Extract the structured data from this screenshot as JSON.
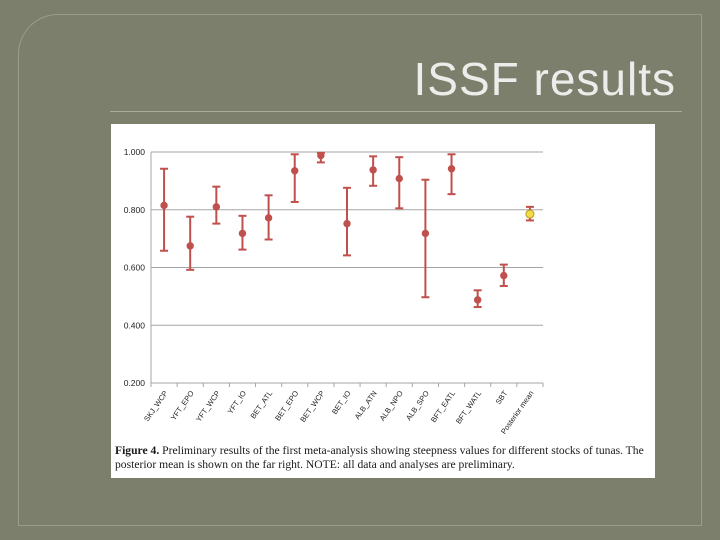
{
  "slide": {
    "title": "ISSF results"
  },
  "caption": {
    "label": "Figure 4.",
    "text": "Preliminary results of the first meta-analysis showing steepness values for different stocks of tunas. The posterior mean is shown on the far right. NOTE: all data and analyses are preliminary."
  },
  "chart_data": {
    "type": "scatter",
    "title": "",
    "xlabel": "",
    "ylabel": "",
    "ylim": [
      0.2,
      1.0
    ],
    "yticks": [
      "1.000",
      "0.800",
      "0.600",
      "0.400",
      "0.200"
    ],
    "ytick_values": [
      1.0,
      0.8,
      0.6,
      0.4,
      0.2
    ],
    "grid": "horizontal",
    "legend": "none",
    "colors": {
      "point": "#c0504d",
      "error_bar": "#c0504d",
      "posterior_point": "#f4dc47",
      "grid": "#a6a6a6"
    },
    "categories": [
      "SKJ_WCP",
      "YFT_EPO",
      "YFT_WCP",
      "YFT_IO",
      "BET_ATL",
      "BET_EPO",
      "BET_WCP",
      "BET_IO",
      "ALB_ATN",
      "ALB_NPO",
      "ALB_SPO",
      "BFT_EATL",
      "BFT_WATL",
      "SBT",
      "Posterior mean"
    ],
    "series": [
      {
        "values": [
          0.815,
          0.675,
          0.81,
          0.718,
          0.772,
          0.935,
          0.988,
          0.752,
          0.938,
          0.908,
          0.718,
          0.942,
          0.488,
          0.572,
          0.785
        ],
        "lower": [
          0.658,
          0.592,
          0.752,
          0.662,
          0.697,
          0.827,
          0.964,
          0.642,
          0.883,
          0.805,
          0.497,
          0.854,
          0.463,
          0.536,
          0.763
        ],
        "upper": [
          0.942,
          0.776,
          0.88,
          0.779,
          0.85,
          0.992,
          0.997,
          0.876,
          0.985,
          0.982,
          0.904,
          0.992,
          0.521,
          0.61,
          0.81
        ]
      }
    ]
  }
}
